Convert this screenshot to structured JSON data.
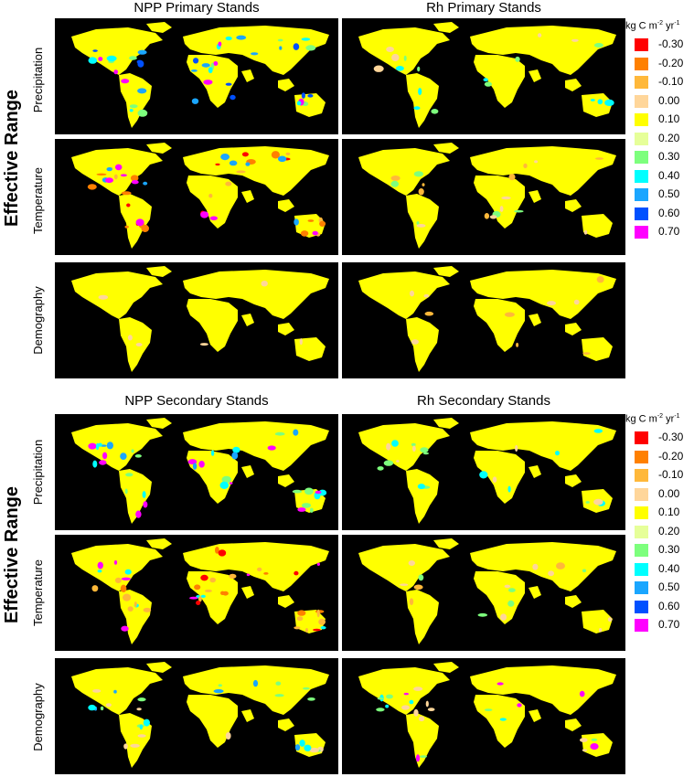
{
  "sections": [
    {
      "side_label": "Effective Range",
      "columns": [
        "NPP Primary Stands",
        "Rh Primary Stands"
      ],
      "rows": [
        "Precipitation",
        "Temperature",
        "Demography"
      ],
      "legend": {
        "unit": "kg C m",
        "unit_exp1": "-2",
        "unit_mid": " yr",
        "unit_exp2": "-1",
        "items": [
          {
            "value": "-0.30",
            "color": "#ff0000"
          },
          {
            "value": "-0.20",
            "color": "#ff8000"
          },
          {
            "value": "-0.10",
            "color": "#ffb83a"
          },
          {
            "value": "0.00",
            "color": "#ffd69a"
          },
          {
            "value": "0.10",
            "color": "#ffff00"
          },
          {
            "value": "0.20",
            "color": "#e6ff99"
          },
          {
            "value": "0.30",
            "color": "#7dff7d"
          },
          {
            "value": "0.40",
            "color": "#00ffff"
          },
          {
            "value": "0.50",
            "color": "#1aa6ff"
          },
          {
            "value": "0.60",
            "color": "#0050ff"
          },
          {
            "value": "0.70",
            "color": "#ff00ff"
          }
        ]
      }
    },
    {
      "side_label": "Effective Range",
      "columns": [
        "NPP Secondary Stands",
        "Rh Secondary Stands"
      ],
      "rows": [
        "Precipitation",
        "Temperature",
        "Demography"
      ],
      "legend": {
        "unit": "kg C m",
        "unit_exp1": "-2",
        "unit_mid": " yr",
        "unit_exp2": "-1",
        "items": [
          {
            "value": "-0.30",
            "color": "#ff0000"
          },
          {
            "value": "-0.20",
            "color": "#ff8000"
          },
          {
            "value": "-0.10",
            "color": "#ffb83a"
          },
          {
            "value": "0.00",
            "color": "#ffd69a"
          },
          {
            "value": "0.10",
            "color": "#ffff00"
          },
          {
            "value": "0.20",
            "color": "#e6ff99"
          },
          {
            "value": "0.30",
            "color": "#7dff7d"
          },
          {
            "value": "0.40",
            "color": "#00ffff"
          },
          {
            "value": "0.50",
            "color": "#1aa6ff"
          },
          {
            "value": "0.60",
            "color": "#0050ff"
          },
          {
            "value": "0.70",
            "color": "#ff00ff"
          }
        ]
      }
    }
  ],
  "map_background": "#000000",
  "land_color": "#ffff00"
}
